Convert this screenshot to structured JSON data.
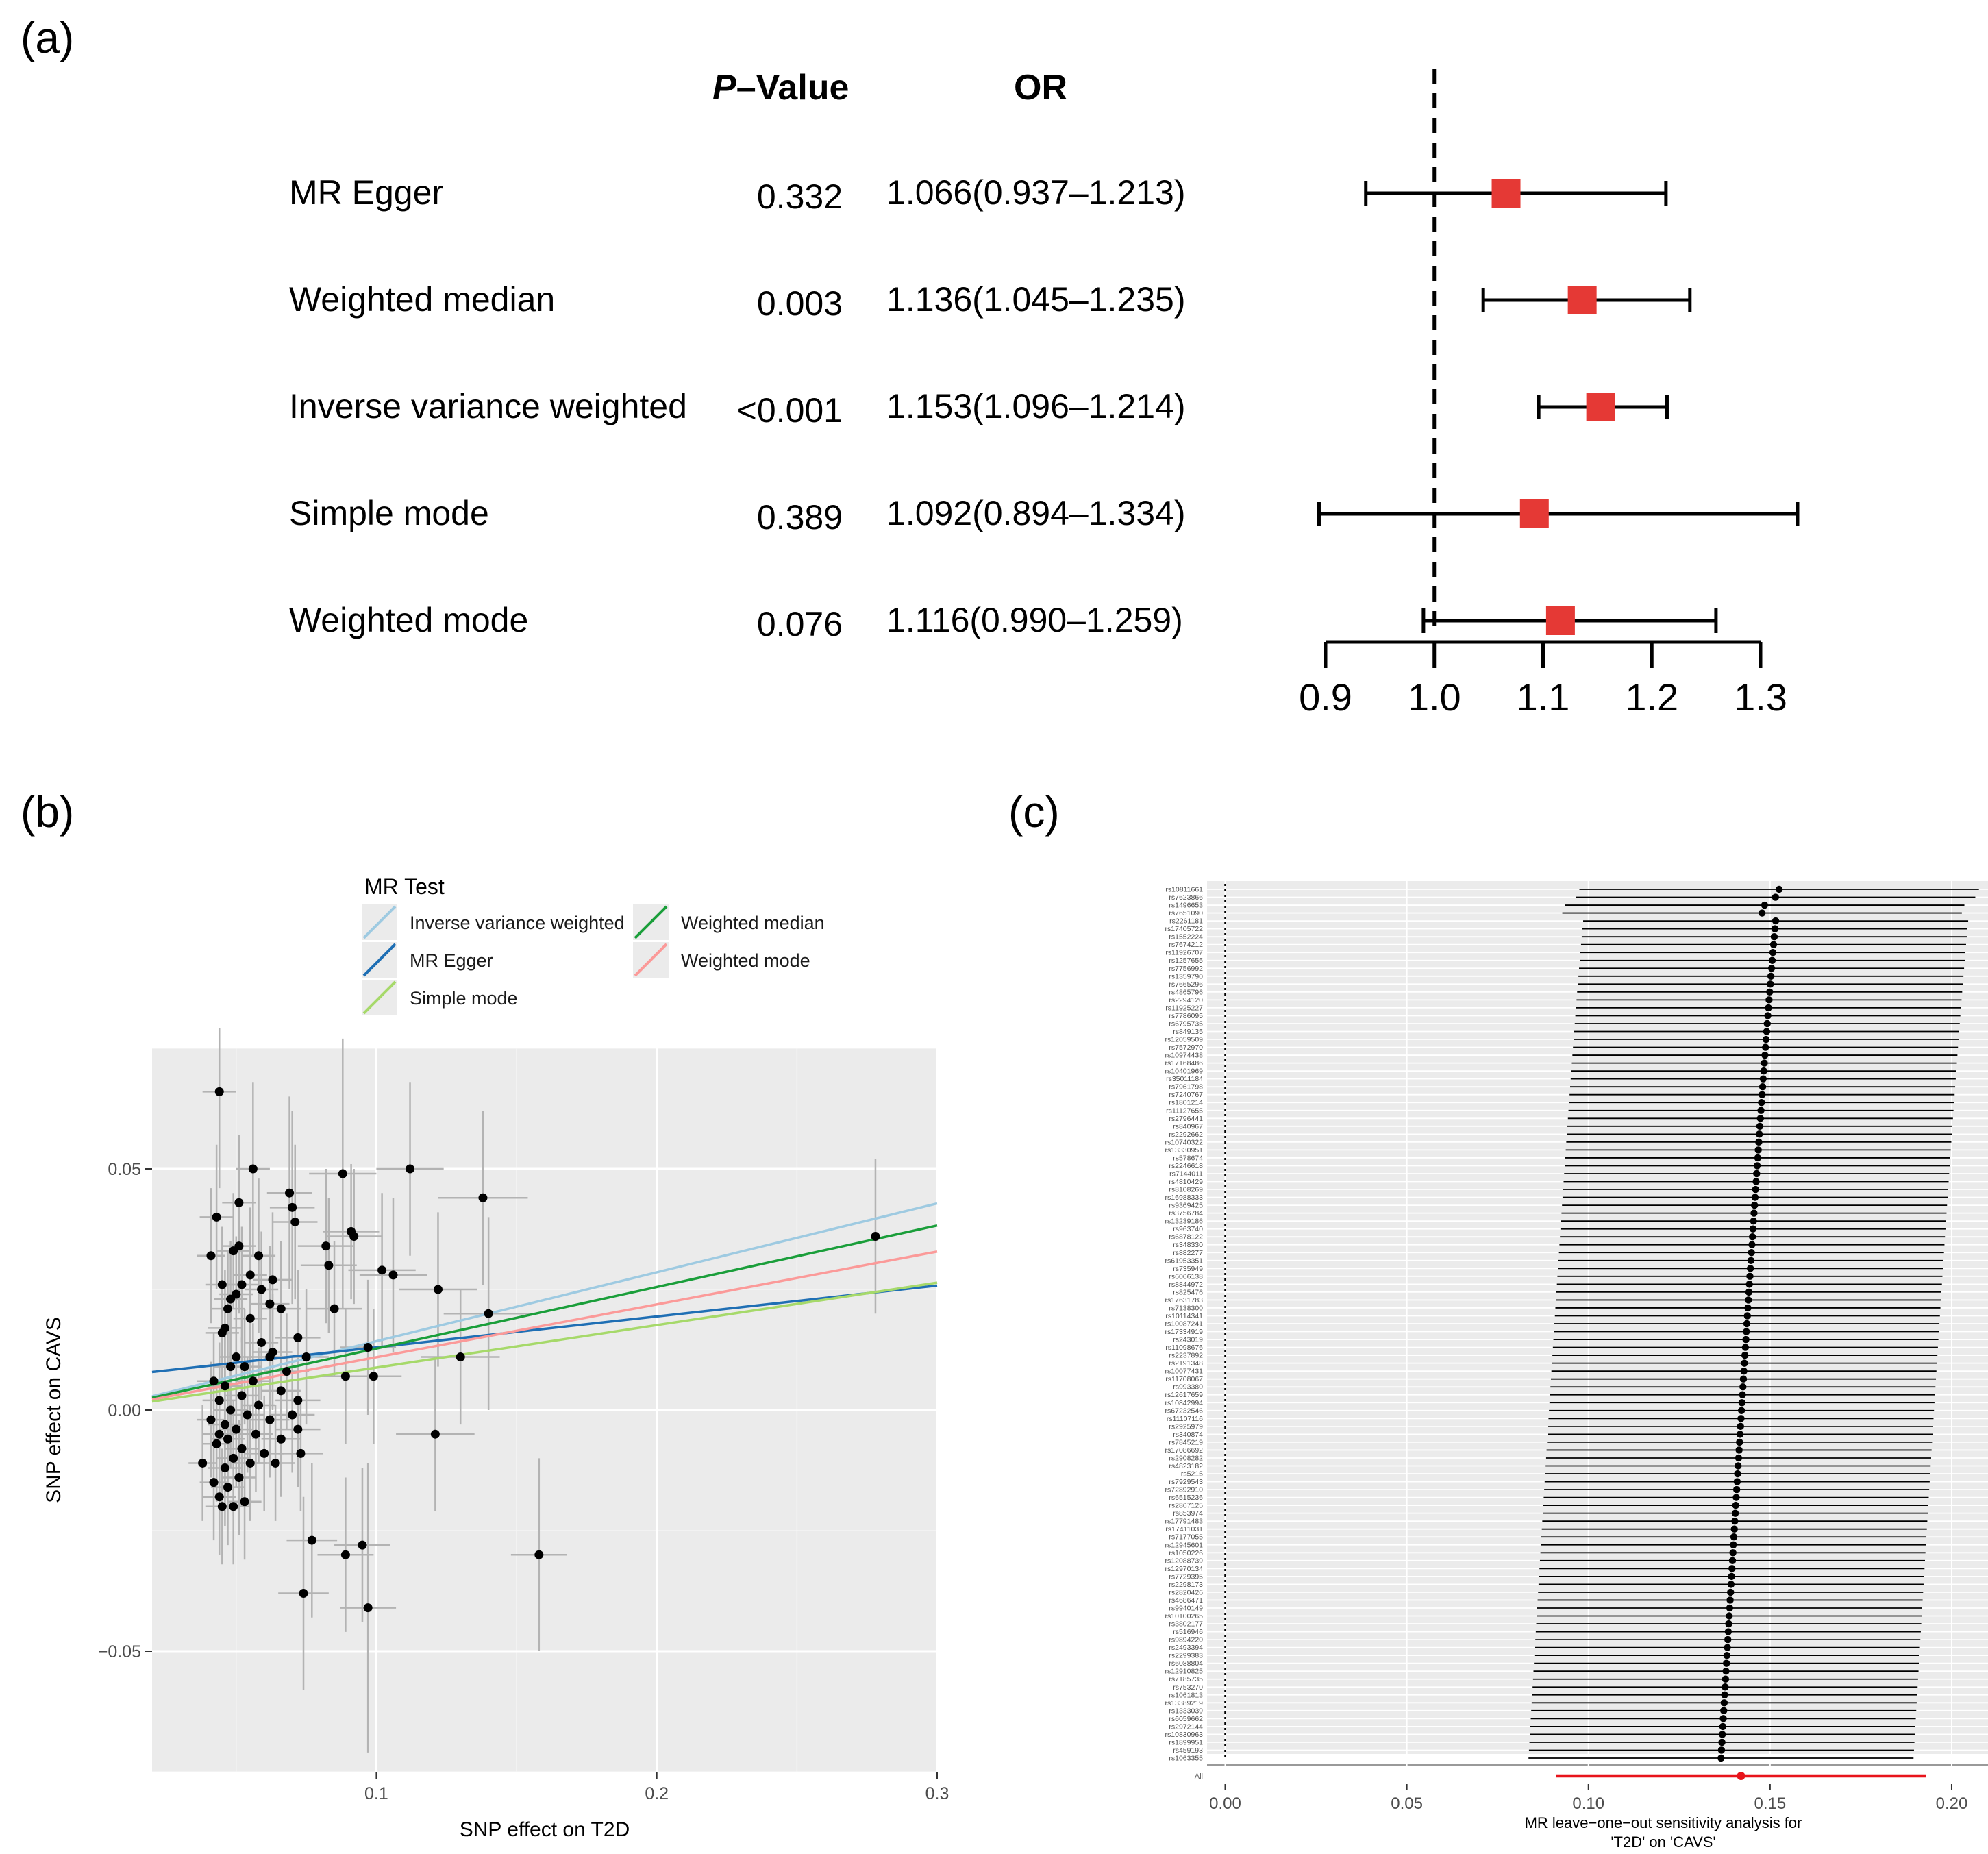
{
  "panels": {
    "a": "(a)",
    "b": "(b)",
    "c": "(c)"
  },
  "chart_data": [
    {
      "id": "a",
      "type": "forest",
      "headers": {
        "p_prefix": "P",
        "p_rest": "–Value",
        "or": "OR"
      },
      "rows": [
        {
          "method": "MR Egger",
          "p": "0.332",
          "or_text": "1.066(0.937–1.213)",
          "or": 1.066,
          "lo": 0.937,
          "hi": 1.213
        },
        {
          "method": "Weighted median",
          "p": "0.003",
          "or_text": "1.136(1.045–1.235)",
          "or": 1.136,
          "lo": 1.045,
          "hi": 1.235
        },
        {
          "method": "Inverse variance weighted",
          "p": "<0.001",
          "or_text": "1.153(1.096–1.214)",
          "or": 1.153,
          "lo": 1.096,
          "hi": 1.214
        },
        {
          "method": "Simple mode",
          "p": "0.389",
          "or_text": "1.092(0.894–1.334)",
          "or": 1.092,
          "lo": 0.894,
          "hi": 1.334
        },
        {
          "method": "Weighted mode",
          "p": "0.076",
          "or_text": "1.116(0.990–1.259)",
          "or": 1.116,
          "lo": 0.99,
          "hi": 1.259
        }
      ],
      "x_ticks": [
        0.9,
        1.0,
        1.1,
        1.2,
        1.3
      ],
      "x_tick_labels": [
        "0.9",
        "1.0",
        "1.1",
        "1.2",
        "1.3"
      ],
      "xlim": [
        0.9,
        1.3
      ],
      "reference": 1.0,
      "point_color": "#E53935"
    },
    {
      "id": "b",
      "type": "scatter",
      "xlabel": "SNP effect on T2D",
      "ylabel": "SNP effect on CAVS",
      "xlim": [
        0.02,
        0.3
      ],
      "ylim": [
        -0.075,
        0.075
      ],
      "x_ticks": [
        0.1,
        0.2,
        0.3
      ],
      "x_tick_labels": [
        "0.1",
        "0.2",
        "0.3"
      ],
      "y_ticks": [
        -0.05,
        0.0,
        0.05
      ],
      "y_tick_labels": [
        "−0.05",
        "0.00",
        "0.05"
      ],
      "legend": {
        "title": "MR Test",
        "entries": [
          {
            "label": "Inverse variance weighted",
            "color": "#9ECAE1"
          },
          {
            "label": "MR Egger",
            "color": "#1F6FB4"
          },
          {
            "label": "Simple mode",
            "color": "#A6D96A"
          },
          {
            "label": "Weighted median",
            "color": "#1A9E3A"
          },
          {
            "label": "Weighted mode",
            "color": "#FB9A99"
          }
        ]
      },
      "lines": [
        {
          "name": "Inverse variance weighted",
          "color": "#9ECAE1",
          "intercept": 0.0,
          "slope": 0.1428
        },
        {
          "name": "MR Egger",
          "color": "#1F6FB4",
          "intercept": 0.0066,
          "slope": 0.064
        },
        {
          "name": "Simple mode",
          "color": "#A6D96A",
          "intercept": 0.0,
          "slope": 0.088
        },
        {
          "name": "Weighted median",
          "color": "#1A9E3A",
          "intercept": 0.0,
          "slope": 0.1275
        },
        {
          "name": "Weighted mode",
          "color": "#FB9A99",
          "intercept": 0.0,
          "slope": 0.1095
        }
      ],
      "points": [
        {
          "x": 0.044,
          "y": 0.066,
          "xe": 0.006,
          "ye": 0.02
        },
        {
          "x": 0.056,
          "y": 0.05,
          "xe": 0.006,
          "ye": 0.018
        },
        {
          "x": 0.112,
          "y": 0.05,
          "xe": 0.012,
          "ye": 0.018
        },
        {
          "x": 0.088,
          "y": 0.049,
          "xe": 0.012,
          "ye": 0.028
        },
        {
          "x": 0.069,
          "y": 0.045,
          "xe": 0.008,
          "ye": 0.02
        },
        {
          "x": 0.138,
          "y": 0.044,
          "xe": 0.016,
          "ye": 0.018
        },
        {
          "x": 0.051,
          "y": 0.043,
          "xe": 0.006,
          "ye": 0.014
        },
        {
          "x": 0.07,
          "y": 0.042,
          "xe": 0.008,
          "ye": 0.02
        },
        {
          "x": 0.043,
          "y": 0.04,
          "xe": 0.006,
          "ye": 0.015
        },
        {
          "x": 0.071,
          "y": 0.039,
          "xe": 0.008,
          "ye": 0.016
        },
        {
          "x": 0.091,
          "y": 0.037,
          "xe": 0.01,
          "ye": 0.014
        },
        {
          "x": 0.278,
          "y": 0.036,
          "xe": 0.0,
          "ye": 0.016
        },
        {
          "x": 0.092,
          "y": 0.036,
          "xe": 0.01,
          "ye": 0.014
        },
        {
          "x": 0.051,
          "y": 0.034,
          "xe": 0.006,
          "ye": 0.014
        },
        {
          "x": 0.082,
          "y": 0.034,
          "xe": 0.01,
          "ye": 0.016
        },
        {
          "x": 0.049,
          "y": 0.033,
          "xe": 0.006,
          "ye": 0.012
        },
        {
          "x": 0.058,
          "y": 0.032,
          "xe": 0.006,
          "ye": 0.016
        },
        {
          "x": 0.041,
          "y": 0.032,
          "xe": 0.005,
          "ye": 0.014
        },
        {
          "x": 0.083,
          "y": 0.03,
          "xe": 0.01,
          "ye": 0.014
        },
        {
          "x": 0.102,
          "y": 0.029,
          "xe": 0.012,
          "ye": 0.016
        },
        {
          "x": 0.106,
          "y": 0.028,
          "xe": 0.012,
          "ye": 0.016
        },
        {
          "x": 0.055,
          "y": 0.028,
          "xe": 0.006,
          "ye": 0.014
        },
        {
          "x": 0.063,
          "y": 0.027,
          "xe": 0.007,
          "ye": 0.014
        },
        {
          "x": 0.052,
          "y": 0.026,
          "xe": 0.006,
          "ye": 0.012
        },
        {
          "x": 0.045,
          "y": 0.026,
          "xe": 0.006,
          "ye": 0.012
        },
        {
          "x": 0.122,
          "y": 0.025,
          "xe": 0.014,
          "ye": 0.016
        },
        {
          "x": 0.059,
          "y": 0.025,
          "xe": 0.006,
          "ye": 0.012
        },
        {
          "x": 0.05,
          "y": 0.024,
          "xe": 0.006,
          "ye": 0.012
        },
        {
          "x": 0.048,
          "y": 0.023,
          "xe": 0.006,
          "ye": 0.012
        },
        {
          "x": 0.062,
          "y": 0.022,
          "xe": 0.007,
          "ye": 0.012
        },
        {
          "x": 0.047,
          "y": 0.021,
          "xe": 0.006,
          "ye": 0.012
        },
        {
          "x": 0.066,
          "y": 0.021,
          "xe": 0.007,
          "ye": 0.014
        },
        {
          "x": 0.085,
          "y": 0.021,
          "xe": 0.01,
          "ye": 0.014
        },
        {
          "x": 0.14,
          "y": 0.02,
          "xe": 0.016,
          "ye": 0.02
        },
        {
          "x": 0.055,
          "y": 0.019,
          "xe": 0.006,
          "ye": 0.012
        },
        {
          "x": 0.046,
          "y": 0.017,
          "xe": 0.006,
          "ye": 0.012
        },
        {
          "x": 0.045,
          "y": 0.016,
          "xe": 0.006,
          "ye": 0.012
        },
        {
          "x": 0.072,
          "y": 0.015,
          "xe": 0.008,
          "ye": 0.014
        },
        {
          "x": 0.059,
          "y": 0.014,
          "xe": 0.006,
          "ye": 0.012
        },
        {
          "x": 0.097,
          "y": 0.013,
          "xe": 0.01,
          "ye": 0.014
        },
        {
          "x": 0.063,
          "y": 0.012,
          "xe": 0.007,
          "ye": 0.012
        },
        {
          "x": 0.05,
          "y": 0.011,
          "xe": 0.006,
          "ye": 0.012
        },
        {
          "x": 0.062,
          "y": 0.011,
          "xe": 0.007,
          "ye": 0.012
        },
        {
          "x": 0.075,
          "y": 0.011,
          "xe": 0.008,
          "ye": 0.014
        },
        {
          "x": 0.13,
          "y": 0.011,
          "xe": 0.014,
          "ye": 0.014
        },
        {
          "x": 0.048,
          "y": 0.009,
          "xe": 0.006,
          "ye": 0.012
        },
        {
          "x": 0.053,
          "y": 0.009,
          "xe": 0.006,
          "ye": 0.012
        },
        {
          "x": 0.068,
          "y": 0.008,
          "xe": 0.008,
          "ye": 0.012
        },
        {
          "x": 0.089,
          "y": 0.007,
          "xe": 0.01,
          "ye": 0.014
        },
        {
          "x": 0.099,
          "y": 0.007,
          "xe": 0.01,
          "ye": 0.014
        },
        {
          "x": 0.042,
          "y": 0.006,
          "xe": 0.006,
          "ye": 0.01
        },
        {
          "x": 0.056,
          "y": 0.006,
          "xe": 0.006,
          "ye": 0.012
        },
        {
          "x": 0.046,
          "y": 0.005,
          "xe": 0.006,
          "ye": 0.012
        },
        {
          "x": 0.066,
          "y": 0.004,
          "xe": 0.007,
          "ye": 0.012
        },
        {
          "x": 0.052,
          "y": 0.003,
          "xe": 0.006,
          "ye": 0.012
        },
        {
          "x": 0.044,
          "y": 0.002,
          "xe": 0.006,
          "ye": 0.012
        },
        {
          "x": 0.072,
          "y": 0.002,
          "xe": 0.008,
          "ye": 0.012
        },
        {
          "x": 0.058,
          "y": 0.001,
          "xe": 0.006,
          "ye": 0.012
        },
        {
          "x": 0.048,
          "y": 0.0,
          "xe": 0.006,
          "ye": 0.012
        },
        {
          "x": 0.07,
          "y": -0.001,
          "xe": 0.008,
          "ye": 0.012
        },
        {
          "x": 0.054,
          "y": -0.001,
          "xe": 0.006,
          "ye": 0.012
        },
        {
          "x": 0.041,
          "y": -0.002,
          "xe": 0.005,
          "ye": 0.012
        },
        {
          "x": 0.062,
          "y": -0.002,
          "xe": 0.007,
          "ye": 0.012
        },
        {
          "x": 0.046,
          "y": -0.003,
          "xe": 0.006,
          "ye": 0.012
        },
        {
          "x": 0.05,
          "y": -0.004,
          "xe": 0.006,
          "ye": 0.012
        },
        {
          "x": 0.072,
          "y": -0.004,
          "xe": 0.008,
          "ye": 0.012
        },
        {
          "x": 0.044,
          "y": -0.005,
          "xe": 0.006,
          "ye": 0.012
        },
        {
          "x": 0.121,
          "y": -0.005,
          "xe": 0.014,
          "ye": 0.016
        },
        {
          "x": 0.057,
          "y": -0.005,
          "xe": 0.006,
          "ye": 0.012
        },
        {
          "x": 0.047,
          "y": -0.006,
          "xe": 0.006,
          "ye": 0.012
        },
        {
          "x": 0.066,
          "y": -0.006,
          "xe": 0.007,
          "ye": 0.012
        },
        {
          "x": 0.043,
          "y": -0.007,
          "xe": 0.005,
          "ye": 0.012
        },
        {
          "x": 0.052,
          "y": -0.008,
          "xe": 0.006,
          "ye": 0.012
        },
        {
          "x": 0.06,
          "y": -0.009,
          "xe": 0.007,
          "ye": 0.012
        },
        {
          "x": 0.073,
          "y": -0.009,
          "xe": 0.008,
          "ye": 0.012
        },
        {
          "x": 0.049,
          "y": -0.01,
          "xe": 0.006,
          "ye": 0.012
        },
        {
          "x": 0.038,
          "y": -0.011,
          "xe": 0.005,
          "ye": 0.012
        },
        {
          "x": 0.055,
          "y": -0.011,
          "xe": 0.006,
          "ye": 0.012
        },
        {
          "x": 0.064,
          "y": -0.011,
          "xe": 0.007,
          "ye": 0.012
        },
        {
          "x": 0.046,
          "y": -0.012,
          "xe": 0.006,
          "ye": 0.012
        },
        {
          "x": 0.051,
          "y": -0.014,
          "xe": 0.006,
          "ye": 0.012
        },
        {
          "x": 0.042,
          "y": -0.015,
          "xe": 0.005,
          "ye": 0.012
        },
        {
          "x": 0.047,
          "y": -0.016,
          "xe": 0.006,
          "ye": 0.012
        },
        {
          "x": 0.044,
          "y": -0.018,
          "xe": 0.006,
          "ye": 0.012
        },
        {
          "x": 0.053,
          "y": -0.019,
          "xe": 0.006,
          "ye": 0.012
        },
        {
          "x": 0.045,
          "y": -0.02,
          "xe": 0.006,
          "ye": 0.012
        },
        {
          "x": 0.049,
          "y": -0.02,
          "xe": 0.006,
          "ye": 0.012
        },
        {
          "x": 0.077,
          "y": -0.027,
          "xe": 0.009,
          "ye": 0.016
        },
        {
          "x": 0.095,
          "y": -0.028,
          "xe": 0.01,
          "ye": 0.016
        },
        {
          "x": 0.089,
          "y": -0.03,
          "xe": 0.01,
          "ye": 0.016
        },
        {
          "x": 0.158,
          "y": -0.03,
          "xe": 0.01,
          "ye": 0.02
        },
        {
          "x": 0.074,
          "y": -0.038,
          "xe": 0.009,
          "ye": 0.02
        },
        {
          "x": 0.097,
          "y": -0.041,
          "xe": 0.01,
          "ye": 0.03
        }
      ]
    },
    {
      "id": "c",
      "type": "leave-one-out",
      "title_line1": "MR leave−one−out sensitivity analysis for",
      "title_line2": "'T2D' on 'CAVS'",
      "xlim": [
        -0.005,
        0.21
      ],
      "x_ticks": [
        0.0,
        0.05,
        0.1,
        0.15,
        0.2
      ],
      "x_tick_labels": [
        "0.00",
        "0.05",
        "0.10",
        "0.15",
        "0.20"
      ],
      "all_label": "All",
      "all": {
        "b": 0.142,
        "lo": 0.091,
        "hi": 0.193
      },
      "snps": [
        "rs10811661",
        "rs7623866",
        "rs1496653",
        "rs7651090",
        "rs2261181",
        "rs17405722",
        "rs1552224",
        "rs7674212",
        "rs11926707",
        "rs1257655",
        "rs7756992",
        "rs1359790",
        "rs7665296",
        "rs4865796",
        "rs2294120",
        "rs11925227",
        "rs7786095",
        "rs6795735",
        "rs849135",
        "rs12059509",
        "rs7572970",
        "rs10974438",
        "rs17168486",
        "rs10401969",
        "rs35011184",
        "rs7961798",
        "rs7240767",
        "rs1801214",
        "rs11127655",
        "rs2796441",
        "rs840967",
        "rs2292662",
        "rs10740322",
        "rs13330951",
        "rs578674",
        "rs2246618",
        "rs7144011",
        "rs4810429",
        "rs8108269",
        "rs16988333",
        "rs9369425",
        "rs3756784",
        "rs13239186",
        "rs963740",
        "rs6878122",
        "rs348330",
        "rs882277",
        "rs61953351",
        "rs735949",
        "rs6066138",
        "rs8844972",
        "rs825476",
        "rs17631783",
        "rs7138300",
        "rs10114341",
        "rs10087241",
        "rs17334919",
        "rs243019",
        "rs11098676",
        "rs2237892",
        "rs2191348",
        "rs10077431",
        "rs11708067",
        "rs993380",
        "rs12617659",
        "rs10842994",
        "rs67232546",
        "rs11107116",
        "rs2925979",
        "rs340874",
        "rs7845219",
        "rs17086692",
        "rs2908282",
        "rs4823182",
        "rs5215",
        "rs7929543",
        "rs72892910",
        "rs6515236",
        "rs2867125",
        "rs853974",
        "rs17791483",
        "rs17411031",
        "rs7177055",
        "rs12945601",
        "rs1050226",
        "rs12088739",
        "rs12970134",
        "rs7729395",
        "rs2298173",
        "rs2820426",
        "rs4686471",
        "rs9940149",
        "rs10100265",
        "rs3802177",
        "rs516946",
        "rs9894220",
        "rs2493394",
        "rs2299383",
        "rs6088804",
        "rs12910825",
        "rs7185735",
        "rs753270",
        "rs1061813",
        "rs13389219",
        "rs1333039",
        "rs6059662",
        "rs2972144",
        "rs10830963",
        "rs1899951",
        "rs459193",
        "rs1063355"
      ],
      "b_first": 0.1525,
      "b_last": 0.1365,
      "ci_half": 0.053
    }
  ]
}
